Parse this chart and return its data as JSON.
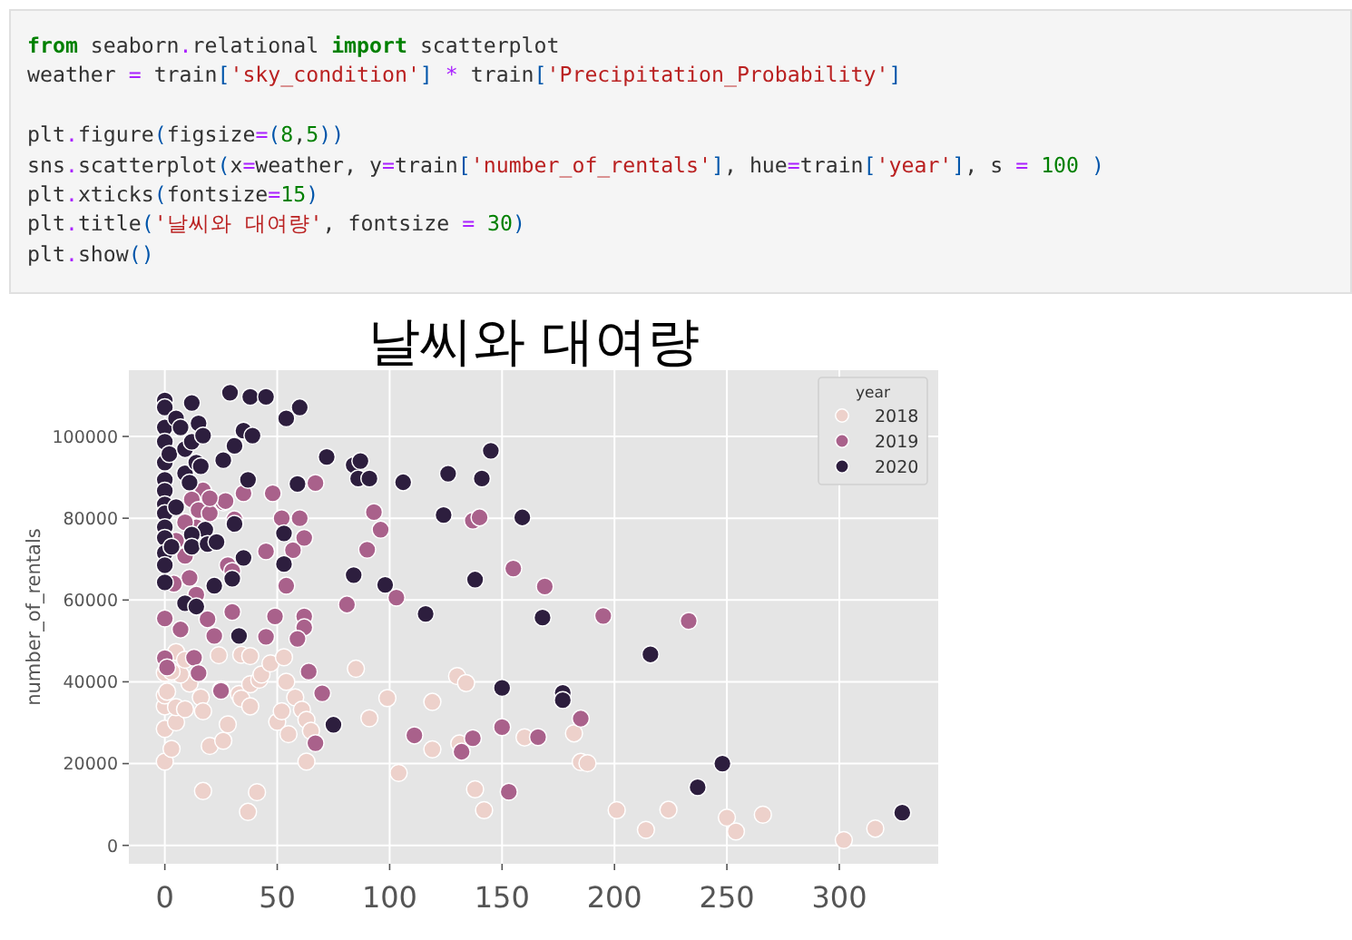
{
  "chart_data": {
    "type": "scatter",
    "title": "날씨와 대여량",
    "ylabel": "number_of_rentals",
    "legend_title": "year",
    "legend": "top right",
    "grid": true,
    "marker": "circle",
    "xlim": [
      -16,
      344
    ],
    "ylim": [
      -4500,
      116200
    ],
    "xticks": [
      0,
      50,
      100,
      150,
      200,
      250,
      300
    ],
    "yticks": [
      0,
      20000,
      40000,
      60000,
      80000,
      100000
    ],
    "annotations": [
      "from seaborn.relational import scatterplot\nweather = train['sky_condition'] * train['Precipitation_Probability']\n\nplt.figure(figsize=(8,5))\nsns.scatterplot(x=weather, y=train['number_of_rentals'], hue=train['year'], s = 100 )\nplt.xticks(fontsize=15)\nplt.title('날씨와 대여량', fontsize = 30)\nplt.show()"
    ],
    "series": [
      {
        "name": "2018",
        "color": "#edd1cb",
        "x": [
          0,
          3,
          0,
          5,
          0,
          0,
          1,
          5,
          9,
          16,
          17,
          11,
          7,
          0,
          3,
          5,
          9,
          17,
          20,
          26,
          28,
          24,
          25,
          33,
          34,
          38,
          38,
          42,
          43,
          34,
          38,
          37,
          41,
          47,
          50,
          52,
          53,
          54,
          55,
          58,
          61,
          63,
          63,
          65,
          85,
          91,
          99,
          104,
          119,
          119,
          130,
          134,
          131,
          138,
          142,
          160,
          182,
          185,
          188,
          201,
          214,
          224,
          250,
          254,
          266,
          302,
          316
        ],
        "values": [
          20500,
          23600,
          28500,
          30100,
          34000,
          36700,
          37600,
          33800,
          33300,
          36200,
          32800,
          39600,
          41800,
          42200,
          42500,
          47300,
          45400,
          13300,
          24300,
          25600,
          29600,
          46500,
          38100,
          37000,
          46600,
          46300,
          39400,
          40500,
          41800,
          35900,
          34000,
          8200,
          13000,
          44500,
          30200,
          32800,
          46000,
          40000,
          27200,
          36200,
          33200,
          30700,
          20500,
          28000,
          43200,
          31100,
          36000,
          17700,
          35100,
          23500,
          41400,
          39700,
          24900,
          13700,
          8600,
          26400,
          27400,
          20400,
          20100,
          8600,
          3800,
          8700,
          6800,
          3400,
          7500,
          1300,
          4100
        ]
      },
      {
        "name": "2019",
        "color": "#a9618b",
        "x": [
          0,
          0,
          1,
          7,
          13,
          15,
          19,
          22,
          25,
          30,
          26,
          28,
          31,
          35,
          45,
          48,
          49,
          45,
          52,
          54,
          57,
          60,
          62,
          62,
          59,
          62,
          64,
          67,
          70,
          67,
          81,
          90,
          93,
          96,
          103,
          111,
          132,
          137,
          137,
          140,
          150,
          153,
          155,
          166,
          169,
          185,
          195,
          233,
          17,
          12,
          15,
          20,
          27,
          5,
          9,
          30,
          11,
          4,
          14,
          9,
          20,
          14
        ],
        "values": [
          55500,
          45800,
          43500,
          52800,
          45900,
          42100,
          55300,
          51200,
          37800,
          57100,
          83900,
          68500,
          79700,
          86100,
          71900,
          86100,
          56000,
          51000,
          80000,
          63500,
          72200,
          80000,
          56000,
          53300,
          50500,
          75200,
          42500,
          88600,
          37200,
          25000,
          58900,
          72300,
          81500,
          77200,
          60600,
          26900,
          22900,
          26200,
          79400,
          80200,
          28900,
          13100,
          67700,
          26500,
          63300,
          31000,
          56100,
          54900,
          86800,
          84600,
          82000,
          81200,
          84200,
          74500,
          70800,
          67100,
          65400,
          64000,
          77800,
          79000,
          84900,
          61300
        ]
      },
      {
        "name": "2020",
        "color": "#2d1e3e",
        "x": [
          0,
          0,
          0,
          0,
          0,
          0,
          0,
          0,
          0,
          0,
          0,
          0,
          0,
          0,
          2,
          5,
          3,
          5,
          7,
          9,
          11,
          9,
          12,
          12,
          14,
          15,
          17,
          16,
          9,
          14,
          18,
          12,
          12,
          19,
          23,
          22,
          26,
          29,
          31,
          35,
          38,
          39,
          37,
          31,
          30,
          35,
          33,
          45,
          54,
          60,
          59,
          53,
          53,
          72,
          75,
          84,
          84,
          87,
          86,
          91,
          98,
          106,
          116,
          124,
          126,
          138,
          141,
          145,
          150,
          159,
          168,
          177,
          177,
          216,
          237,
          248,
          328
        ],
        "values": [
          108800,
          107100,
          102200,
          98700,
          93600,
          89400,
          86700,
          83400,
          81200,
          77800,
          75200,
          71500,
          68500,
          64300,
          95700,
          82700,
          73000,
          104400,
          102200,
          91000,
          88700,
          96900,
          108200,
          98700,
          93600,
          103200,
          100200,
          92700,
          59200,
          58400,
          77200,
          76000,
          73000,
          73700,
          74200,
          63500,
          94200,
          110700,
          97700,
          101400,
          109700,
          100200,
          89400,
          78600,
          65200,
          70300,
          51200,
          109700,
          104400,
          107100,
          88400,
          76300,
          68800,
          95000,
          29500,
          66100,
          93000,
          94000,
          89700,
          89700,
          63700,
          88800,
          56600,
          80800,
          90900,
          65000,
          89700,
          96500,
          38500,
          80200,
          55700,
          37300,
          35500,
          46700,
          14200,
          20000,
          8000
        ]
      }
    ]
  }
}
